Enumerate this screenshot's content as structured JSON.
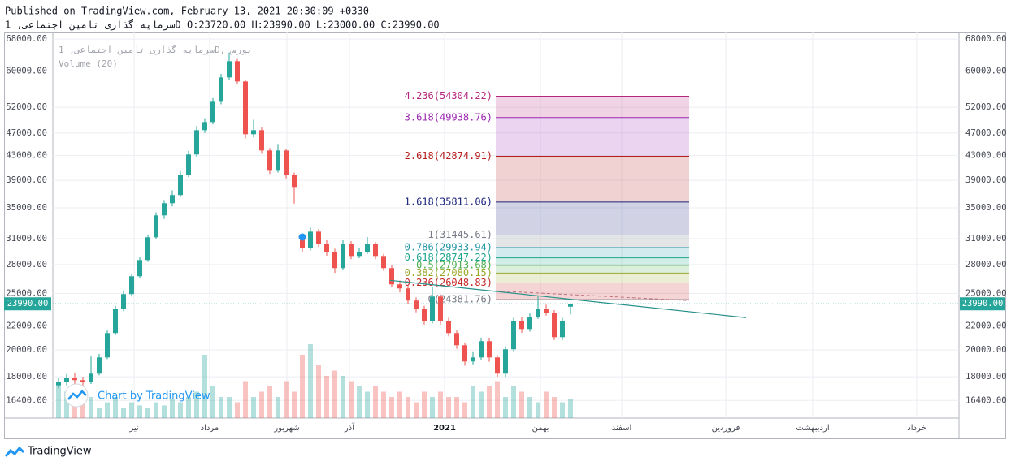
{
  "chart_data": {
    "type": "candlestick",
    "title": "Published on TradingView.com, February 13, 2021 20:30:09 +0330",
    "subtitle": "سرمایه گذاری تامین اجتماعی, 1D O:23720.00 H:23990.00 L:23000.00 C:23990.00",
    "legend_name": "سرمایه گذاری تامین اجتماعی, 1D, بورس",
    "volume_label": "Volume (20)",
    "watermark": "Chart by TradingView",
    "brand": "TradingView",
    "open": [
      17400,
      17650,
      17935,
      17765,
      17650,
      18225,
      19425,
      21380,
      23530,
      24925,
      26740,
      28500,
      31170,
      33980,
      35650,
      36810,
      39860,
      43180,
      47520,
      49060,
      53140,
      58490,
      62350,
      57560,
      46770,
      47520,
      43870,
      40500,
      43870,
      39860,
      31000,
      29900,
      31870,
      30380,
      29430,
      27610,
      30380,
      28960,
      29430,
      30380,
      28960,
      27610,
      25900,
      25490,
      24300,
      23530,
      22430,
      24690,
      22430,
      21380,
      20380,
      19120,
      19425,
      20710,
      19425,
      18225,
      20060,
      22430,
      21725,
      22790,
      23530,
      23160,
      21040,
      23720
    ],
    "high": [
      17900,
      18200,
      18300,
      18000,
      19500,
      19700,
      21600,
      23800,
      25300,
      27000,
      28800,
      31500,
      34400,
      36100,
      37500,
      40400,
      43800,
      48300,
      49800,
      53900,
      59300,
      64500,
      62900,
      57900,
      49500,
      48000,
      44300,
      45000,
      44200,
      40200,
      31500,
      32400,
      32200,
      30800,
      29800,
      30800,
      30700,
      29900,
      31200,
      30600,
      29200,
      27900,
      26300,
      25800,
      24600,
      23800,
      25600,
      24900,
      22700,
      21600,
      20600,
      19900,
      21000,
      21000,
      19600,
      20300,
      22700,
      22800,
      23100,
      24800,
      23900,
      23400,
      22700,
      23990
    ],
    "low": [
      17200,
      17400,
      17500,
      17400,
      17500,
      18100,
      19300,
      21200,
      23300,
      24700,
      26500,
      28300,
      31000,
      33500,
      35200,
      36500,
      39500,
      42800,
      47000,
      48600,
      52600,
      58000,
      57000,
      46000,
      46200,
      43300,
      40000,
      40200,
      39300,
      35600,
      29400,
      29600,
      30000,
      29000,
      27100,
      27400,
      28600,
      28700,
      29200,
      28600,
      27300,
      25600,
      25100,
      24000,
      23200,
      22100,
      22200,
      22100,
      21100,
      20100,
      18800,
      18900,
      19200,
      19100,
      18000,
      18000,
      19900,
      21400,
      21500,
      22600,
      22900,
      20800,
      20800,
      23000
    ],
    "close": [
      17650,
      17935,
      17765,
      17650,
      18225,
      19425,
      21380,
      23530,
      24925,
      26740,
      28500,
      31170,
      33980,
      35650,
      36810,
      39860,
      43180,
      47520,
      49060,
      53140,
      58490,
      62350,
      57560,
      46770,
      47520,
      43870,
      40500,
      43870,
      39860,
      38000,
      29900,
      31870,
      30380,
      29430,
      27610,
      30380,
      28960,
      29430,
      30380,
      28960,
      27610,
      25900,
      25490,
      24300,
      23530,
      22430,
      24690,
      22430,
      21380,
      20380,
      19120,
      19425,
      20710,
      19425,
      18225,
      20060,
      22430,
      21725,
      22790,
      23530,
      23160,
      21040,
      22430,
      23990
    ],
    "volume": [
      30,
      25,
      20,
      15,
      20,
      10,
      15,
      20,
      10,
      15,
      12,
      10,
      15,
      12,
      18,
      15,
      20,
      25,
      60,
      30,
      20,
      20,
      15,
      35,
      20,
      25,
      30,
      20,
      35,
      25,
      60,
      70,
      50,
      40,
      45,
      40,
      35,
      30,
      25,
      30,
      25,
      20,
      25,
      20,
      15,
      25,
      20,
      25,
      20,
      20,
      15,
      30,
      25,
      30,
      35,
      20,
      30,
      25,
      20,
      15,
      25,
      20,
      15,
      18
    ],
    "vlim": [
      0,
      100
    ],
    "up_color": "#26a69a",
    "down_color": "#ef5350",
    "log_scale": true,
    "grid": true,
    "xlim": [
      -0.7,
      110.8
    ],
    "xticks": [
      {
        "value": 9.3,
        "label": "تیر"
      },
      {
        "value": 18.6,
        "label": "مرداد"
      },
      {
        "value": 28.1,
        "label": "شهریور"
      },
      {
        "value": 35.8,
        "label": "آذر"
      },
      {
        "value": 47.5,
        "label": "2021"
      },
      {
        "value": 59.3,
        "label": "بهمن"
      },
      {
        "value": 69.3,
        "label": "اسفند"
      },
      {
        "value": 82.1,
        "label": "فروردین"
      },
      {
        "value": 92.8,
        "label": "اردیبهشت"
      },
      {
        "value": 105.6,
        "label": "خرداد"
      }
    ],
    "ylim": [
      15300,
      69800
    ],
    "yticks": [
      {
        "value": 16400,
        "label": "16400.00"
      },
      {
        "value": 18000,
        "label": "18000.00"
      },
      {
        "value": 20000,
        "label": "20000.00"
      },
      {
        "value": 22000,
        "label": "22000.00"
      },
      {
        "value": 25000,
        "label": "25000.00"
      },
      {
        "value": 28000,
        "label": "28000.00"
      },
      {
        "value": 31000,
        "label": "31000.00"
      },
      {
        "value": 35000,
        "label": "35000.00"
      },
      {
        "value": 39000,
        "label": "39000.00"
      },
      {
        "value": 43000,
        "label": "43000.00"
      },
      {
        "value": 47000,
        "label": "47000.00"
      },
      {
        "value": 52000,
        "label": "52000.00"
      },
      {
        "value": 60000,
        "label": "60000.00"
      },
      {
        "value": 68000,
        "label": "68000.00"
      }
    ],
    "current_price": {
      "value": 23990,
      "label": "23990.00"
    },
    "fib": {
      "x": [
        53.8,
        77.6
      ],
      "levels": [
        {
          "price": 54304.22,
          "label": "4.236(54304.22)",
          "color": "#b5267d"
        },
        {
          "price": 49938.76,
          "label": "3.618(49938.76)",
          "color": "#9c27b0"
        },
        {
          "price": 42874.91,
          "label": "2.618(42874.91)",
          "color": "#b71c1c"
        },
        {
          "price": 35811.06,
          "label": "1.618(35811.06)",
          "color": "#1a237e"
        },
        {
          "price": 31445.61,
          "label": "1(31445.61)",
          "color": "#787b86"
        },
        {
          "price": 29933.94,
          "label": "0.786(29933.94)",
          "color": "#2196a8"
        },
        {
          "price": 28747.22,
          "label": "0.618(28747.22)",
          "color": "#1aa58c"
        },
        {
          "price": 27913.68,
          "label": "0.5(27913.68)",
          "color": "#4caf50"
        },
        {
          "price": 27080.15,
          "label": "0.382(27080.15)",
          "color": "#9aa82a"
        },
        {
          "price": 26048.83,
          "label": "0.236(26048.83)",
          "color": "#c62828"
        },
        {
          "price": 24381.76,
          "label": "0(24381.76)",
          "color": "#787b86"
        }
      ]
    },
    "trendline": {
      "x": [
        40.8,
        84.6
      ],
      "y": [
        26315,
        22720
      ],
      "color": "#26908a"
    },
    "dashed": {
      "x": [
        53.8,
        77.6
      ],
      "y": [
        25240,
        24300
      ],
      "color": "#c0707a"
    },
    "marker": {
      "x": 30,
      "y": 31200,
      "color": "#2196f3"
    }
  }
}
